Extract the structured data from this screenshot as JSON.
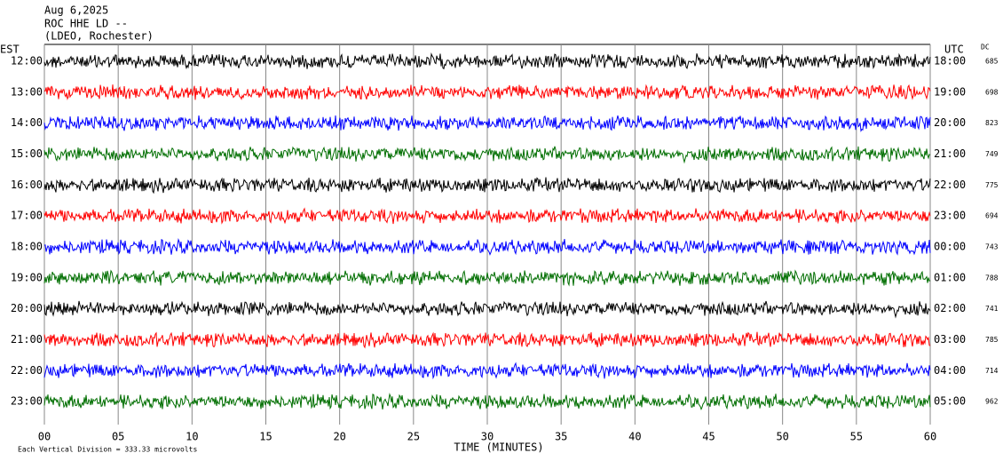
{
  "header": {
    "date": "Aug 6,2025",
    "station": "ROC HHE LD --",
    "network": "(LDEO, Rochester)",
    "left_zone": "EST",
    "right_zone": "UTC",
    "dc_label": "DC"
  },
  "chart_data": {
    "type": "helicorder",
    "xlabel": "TIME (MINUTES)",
    "footnote": "Each Vertical Division = 333.33 microvolts",
    "xlim": [
      0,
      60
    ],
    "xticks": [
      {
        "value": 0,
        "label": "00"
      },
      {
        "value": 5,
        "label": "05"
      },
      10,
      15,
      20,
      25,
      30,
      35,
      40,
      45,
      50,
      55,
      60
    ],
    "grid": true,
    "rows": [
      {
        "est": "12:00",
        "utc": "18:00",
        "dc": 685,
        "color": "#000000"
      },
      {
        "est": "13:00",
        "utc": "19:00",
        "dc": 698,
        "color": "#ff0000"
      },
      {
        "est": "14:00",
        "utc": "20:00",
        "dc": 823,
        "color": "#0000ff"
      },
      {
        "est": "15:00",
        "utc": "21:00",
        "dc": 749,
        "color": "#006e00"
      },
      {
        "est": "16:00",
        "utc": "22:00",
        "dc": 775,
        "color": "#000000"
      },
      {
        "est": "17:00",
        "utc": "23:00",
        "dc": 694,
        "color": "#ff0000"
      },
      {
        "est": "18:00",
        "utc": "00:00",
        "dc": 743,
        "color": "#0000ff"
      },
      {
        "est": "19:00",
        "utc": "01:00",
        "dc": 788,
        "color": "#006e00"
      },
      {
        "est": "20:00",
        "utc": "02:00",
        "dc": 741,
        "color": "#000000"
      },
      {
        "est": "21:00",
        "utc": "03:00",
        "dc": 785,
        "color": "#ff0000"
      },
      {
        "est": "22:00",
        "utc": "04:00",
        "dc": 714,
        "color": "#0000ff"
      },
      {
        "est": "23:00",
        "utc": "05:00",
        "dc": 962,
        "color": "#006e00"
      }
    ]
  }
}
